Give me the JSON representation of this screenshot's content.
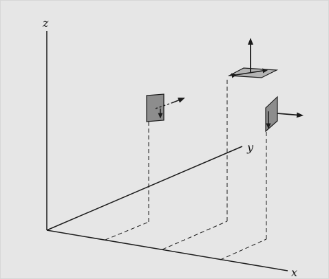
{
  "axes": {
    "x_label": "x",
    "y_label": "y",
    "z_label": "z"
  },
  "colors": {
    "background": "#e6e6e6",
    "ink": "#1b1b1b",
    "plane_fill": "#8d8d8d",
    "plane_fill_light": "#b4b4b4"
  }
}
